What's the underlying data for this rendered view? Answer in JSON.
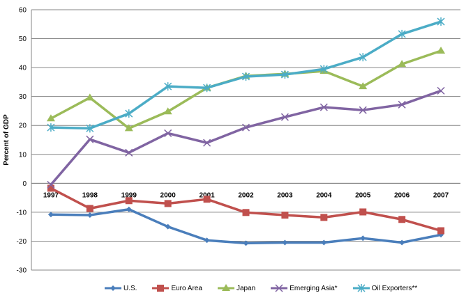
{
  "chart_data": {
    "type": "line",
    "title": "",
    "xlabel": "",
    "ylabel": "Percent of GDP",
    "ylim": [
      -30,
      60
    ],
    "yticks": [
      -30,
      -20,
      -10,
      0,
      10,
      20,
      30,
      40,
      50,
      60
    ],
    "grid": true,
    "legend_position": "bottom",
    "categories": [
      "1997",
      "1998",
      "1999",
      "2000",
      "2001",
      "2002",
      "2003",
      "2004",
      "2005",
      "2006",
      "2007"
    ],
    "series": [
      {
        "name": "U.S.",
        "color": "#4a7ebb",
        "marker": "diamond",
        "values": [
          -10.8,
          -11.0,
          -9.0,
          -15.0,
          -19.7,
          -20.7,
          -20.5,
          -20.5,
          -19.0,
          -20.5,
          -17.8
        ]
      },
      {
        "name": "Euro Area",
        "color": "#c0504d",
        "marker": "square",
        "values": [
          -1.7,
          -8.7,
          -6.0,
          -7.0,
          -5.5,
          -10.1,
          -11.0,
          -11.8,
          -9.9,
          -12.5,
          -16.4
        ]
      },
      {
        "name": "Japan",
        "color": "#9bbb59",
        "marker": "triangle",
        "values": [
          22.4,
          29.6,
          19.0,
          24.8,
          33.0,
          37.1,
          37.8,
          38.8,
          33.5,
          41.2,
          45.8
        ]
      },
      {
        "name": "Emerging Asia*",
        "color": "#8064a2",
        "marker": "x",
        "values": [
          -0.5,
          15.2,
          10.6,
          17.3,
          14.0,
          19.3,
          22.9,
          26.3,
          25.3,
          27.2,
          32.0
        ]
      },
      {
        "name": "Oil Exporters**",
        "color": "#4bacc6",
        "marker": "star",
        "values": [
          19.3,
          19.0,
          24.1,
          33.5,
          33.0,
          36.9,
          37.6,
          39.5,
          43.6,
          51.6,
          55.9
        ]
      }
    ]
  }
}
